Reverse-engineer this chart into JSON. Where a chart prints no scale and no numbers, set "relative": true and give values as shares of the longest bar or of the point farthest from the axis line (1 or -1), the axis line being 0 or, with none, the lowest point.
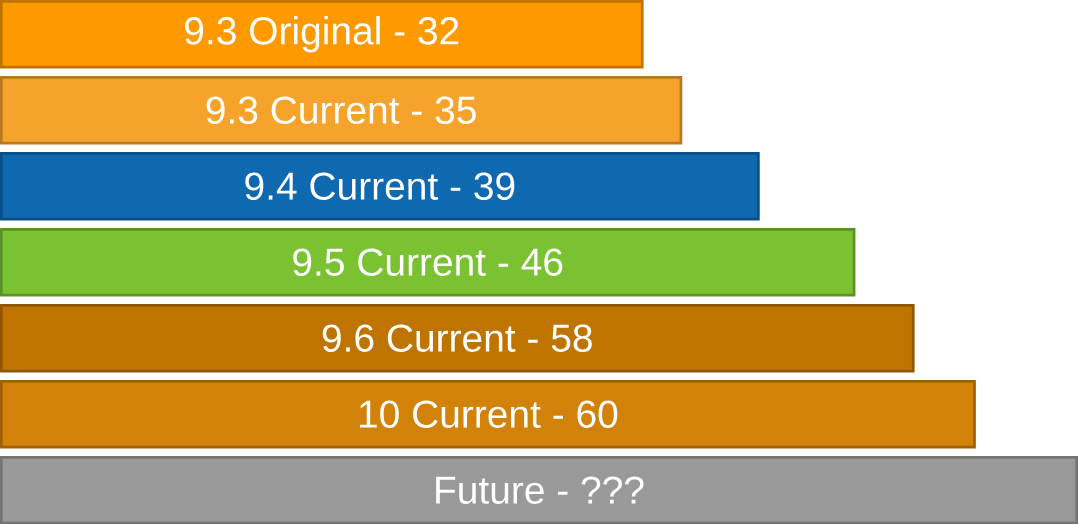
{
  "chart_data": {
    "type": "bar",
    "orientation": "horizontal",
    "relative": true,
    "categories": [
      "9.3 Original  - 32",
      "9.3 Current - 35",
      "9.4 Current - 39",
      "9.5 Current - 46",
      "9.6 Current - 58",
      "10 Current - 60",
      "Future - ???"
    ],
    "values": [
      0.596,
      0.632,
      0.704,
      0.793,
      0.848,
      0.905,
      1.0
    ],
    "colors": [
      "#ff9900",
      "#f5a32a",
      "#0f69b0",
      "#7ac232",
      "#c07400",
      "#d38209",
      "#999999"
    ]
  }
}
